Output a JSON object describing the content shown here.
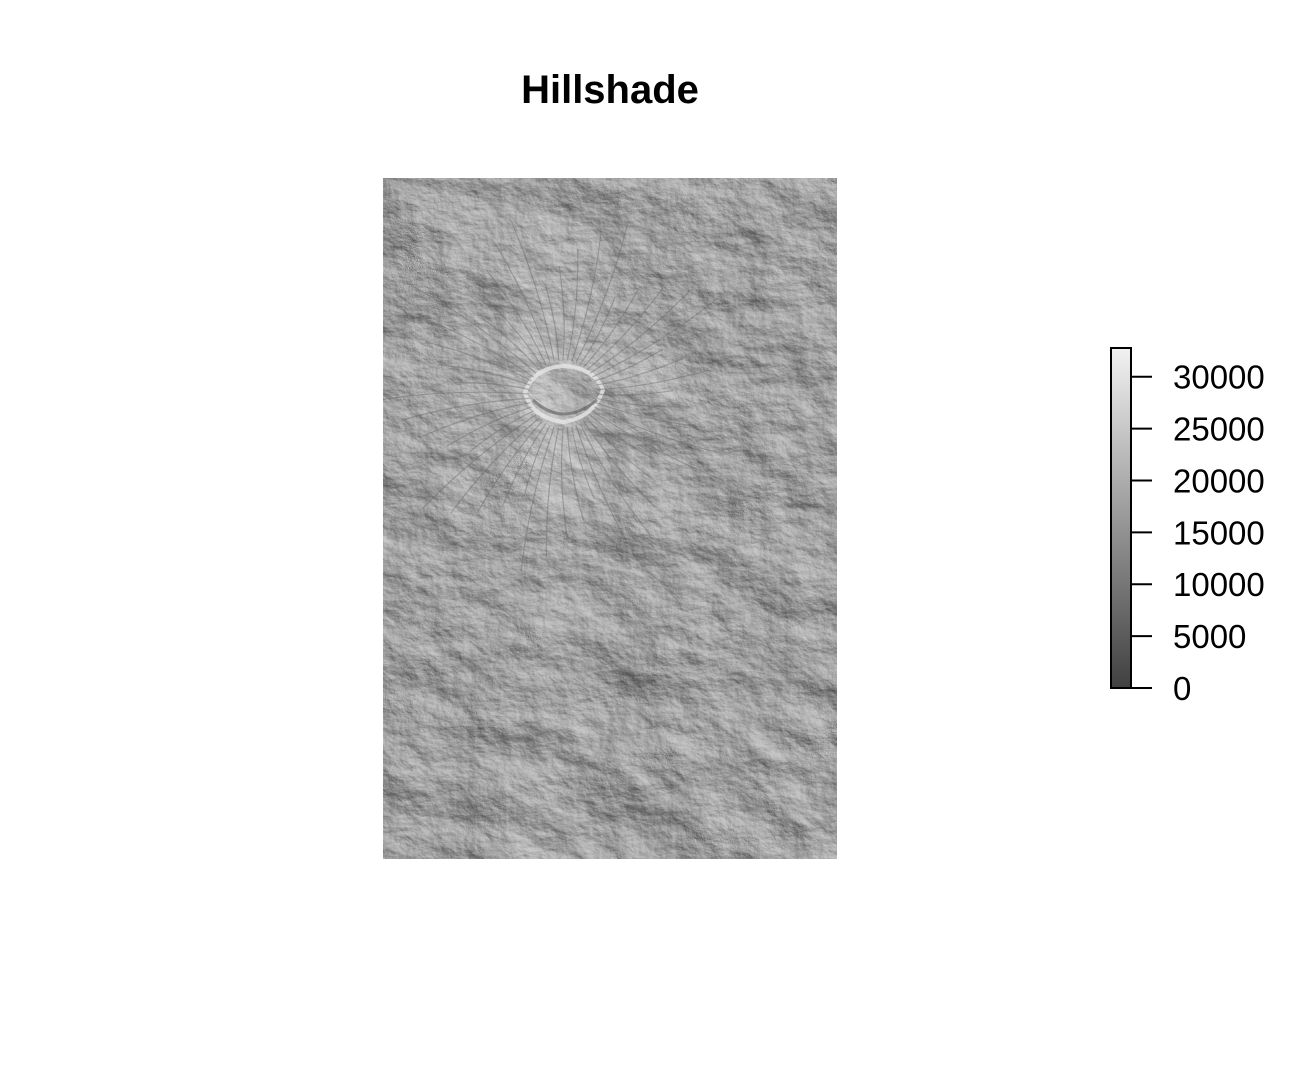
{
  "title": "Hillshade",
  "raster": {
    "description_free": true,
    "value_range": [
      0,
      32767
    ],
    "color_low": "#404040",
    "color_high": "#f2f2f2",
    "base_gray": "#a9a9a9"
  },
  "legend": {
    "min": 0,
    "max": 32767,
    "ticks": [
      {
        "value": 0,
        "label": "0"
      },
      {
        "value": 5000,
        "label": "5000"
      },
      {
        "value": 10000,
        "label": "10000"
      },
      {
        "value": 15000,
        "label": "15000"
      },
      {
        "value": 20000,
        "label": "20000"
      },
      {
        "value": 25000,
        "label": "25000"
      },
      {
        "value": 30000,
        "label": "30000"
      }
    ]
  }
}
